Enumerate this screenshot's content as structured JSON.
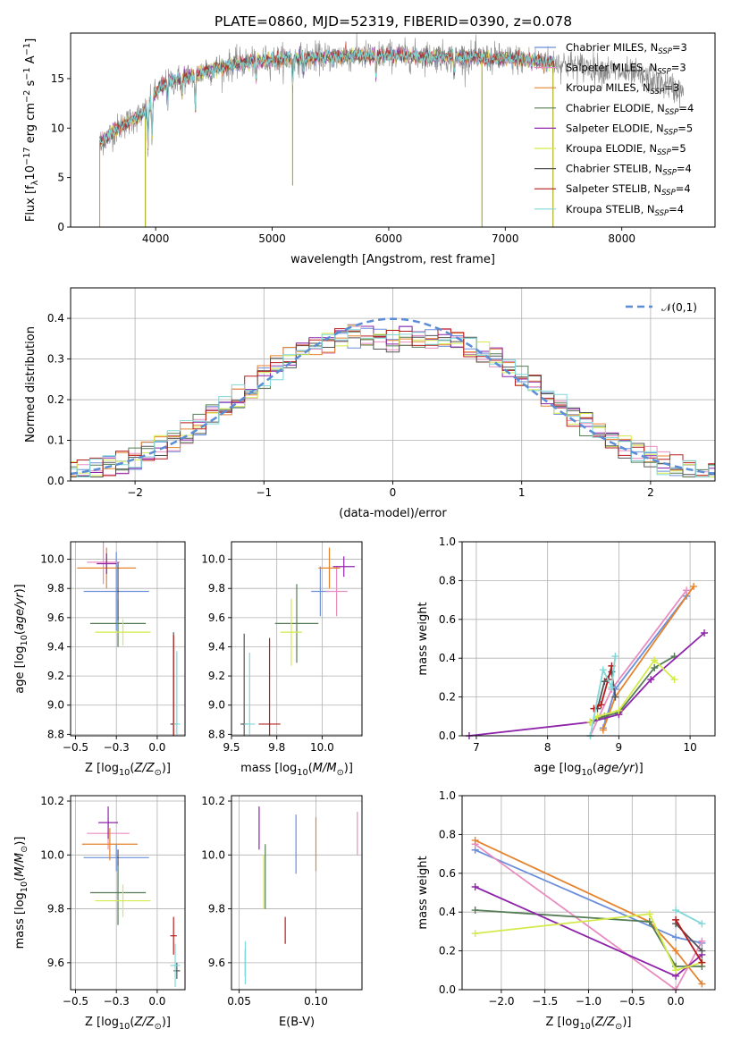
{
  "page_title": "PLATE=0860, MJD=52319, FIBERID=0390, z=0.078",
  "colors": {
    "Chabrier MILES": "#6a8edb",
    "Salpeter MILES": "#e88dc0",
    "Kroupa MILES": "#e5832d",
    "Chabrier ELODIE": "#557c55",
    "Salpeter ELODIE": "#8e24aa",
    "Kroupa ELODIE": "#d4ea4b",
    "Chabrier STELIB": "#555555",
    "Salpeter STELIB": "#b71c1c",
    "Kroupa STELIB": "#80d8d8",
    "gauss": "#5b8dd6"
  },
  "chart_data": [
    {
      "type": "line",
      "title": "PLATE=0860, MJD=52319, FIBERID=0390, z=0.078",
      "xlabel": "wavelength [Angstrom, rest frame]",
      "ylabel": "Flux [f_λ 10^-17 erg cm^-2 s^-1 A^-1]",
      "xlim": [
        3270,
        8800
      ],
      "ylim": [
        0,
        19.6
      ],
      "xticks": [
        4000,
        5000,
        6000,
        7000,
        8000
      ],
      "yticks": [
        0,
        5,
        10,
        15
      ],
      "legend_position": "right",
      "legend": [
        {
          "name": "Chabrier MILES",
          "ssp": "3"
        },
        {
          "name": "Salpeter MILES",
          "ssp": "3"
        },
        {
          "name": "Kroupa MILES",
          "ssp": "3"
        },
        {
          "name": "Chabrier ELODIE",
          "ssp": "4"
        },
        {
          "name": "Salpeter ELODIE",
          "ssp": "5"
        },
        {
          "name": "Kroupa ELODIE",
          "ssp": "5"
        },
        {
          "name": "Chabrier STELIB",
          "ssp": "4"
        },
        {
          "name": "Salpeter STELIB",
          "ssp": "4"
        },
        {
          "name": "Kroupa STELIB",
          "ssp": "4"
        }
      ],
      "continuum": [
        [
          3520,
          8.5
        ],
        [
          3700,
          10.2
        ],
        [
          3900,
          11.5
        ],
        [
          4000,
          13.5
        ],
        [
          4100,
          14.6
        ],
        [
          4300,
          15.3
        ],
        [
          4500,
          16.0
        ],
        [
          4800,
          16.7
        ],
        [
          5000,
          16.9
        ],
        [
          5500,
          17.2
        ],
        [
          6000,
          17.4
        ],
        [
          6500,
          17.2
        ],
        [
          7000,
          17.0
        ],
        [
          7300,
          16.8
        ],
        [
          7500,
          16.5
        ],
        [
          7800,
          16.0
        ],
        [
          8100,
          15.4
        ],
        [
          8400,
          14.3
        ],
        [
          8530,
          13.5
        ]
      ],
      "model_range": [
        3520,
        7420
      ],
      "obs_range": [
        3520,
        8530
      ]
    },
    {
      "type": "bar",
      "xlabel": "(data-model)/error",
      "ylabel": "Normed distribution",
      "xlim": [
        -2.5,
        2.5
      ],
      "ylim": [
        0,
        0.475
      ],
      "xticks": [
        -2,
        -1,
        0,
        1,
        2
      ],
      "yticks": [
        0.0,
        0.1,
        0.2,
        0.3,
        0.4
      ],
      "bin_width": 0.1,
      "gauss_label": "𝒩(0,1)",
      "legend_position": "top-right"
    },
    {
      "type": "scatter",
      "xlabel": "Z [log10(Z/Z⊙)]",
      "ylabel": "age  [log10(age/yr)]",
      "xlim": [
        -0.53,
        0.17
      ],
      "ylim": [
        8.79,
        10.12
      ],
      "xticks": [
        -0.5,
        -0.25,
        0.0
      ],
      "yticks": [
        8.8,
        9.0,
        9.2,
        9.4,
        9.6,
        9.8,
        10.0
      ],
      "points": [
        {
          "series": "Chabrier MILES",
          "x": -0.25,
          "y": 9.78,
          "ex": 0.2,
          "ey": 0.27
        },
        {
          "series": "Salpeter MILES",
          "x": -0.33,
          "y": 9.98,
          "ex": 0.1,
          "ey": 0.15
        },
        {
          "series": "Kroupa MILES",
          "x": -0.31,
          "y": 9.94,
          "ex": 0.18,
          "ey": 0.14
        },
        {
          "series": "Chabrier ELODIE",
          "x": -0.24,
          "y": 9.56,
          "ex": 0.17,
          "ey": 0.16
        },
        {
          "series": "Salpeter ELODIE",
          "x": -0.31,
          "y": 9.97,
          "ex": 0.06,
          "ey": 0.07
        },
        {
          "series": "Kroupa ELODIE",
          "x": -0.21,
          "y": 9.5,
          "ex": 0.17,
          "ey": 0.09
        },
        {
          "series": "Chabrier STELIB",
          "x": 0.1,
          "y": 8.87,
          "ex": 0.02,
          "ey": 0.63
        },
        {
          "series": "Salpeter STELIB",
          "x": 0.1,
          "y": 8.87,
          "ex": 0.01,
          "ey": 0.61
        },
        {
          "series": "Kroupa STELIB",
          "x": 0.12,
          "y": 8.87,
          "ex": 0.02,
          "ey": 0.5
        },
        {
          "series": "Chabrier STELIB",
          "x": -0.24,
          "y": 9.78,
          "ex": 0.005,
          "ey": 0.2
        }
      ]
    },
    {
      "type": "scatter",
      "xlabel": "mass [log10(M/M⊙)]",
      "ylabel": "",
      "xlim": [
        9.5,
        10.22
      ],
      "ylim": [
        8.79,
        10.12
      ],
      "xticks": [
        9.5,
        9.75,
        10.0
      ],
      "yticks": [
        8.8,
        9.0,
        9.2,
        9.4,
        9.6,
        9.8,
        10.0
      ],
      "points": [
        {
          "series": "Chabrier MILES",
          "x": 9.99,
          "y": 9.78,
          "ex": 0.05,
          "ey": 0.17
        },
        {
          "series": "Salpeter MILES",
          "x": 10.08,
          "y": 9.78,
          "ex": 0.06,
          "ey": 0.17
        },
        {
          "series": "Kroupa MILES",
          "x": 10.04,
          "y": 9.94,
          "ex": 0.06,
          "ey": 0.14
        },
        {
          "series": "Chabrier ELODIE",
          "x": 9.86,
          "y": 9.56,
          "ex": 0.12,
          "ey": 0.27
        },
        {
          "series": "Salpeter ELODIE",
          "x": 10.12,
          "y": 9.95,
          "ex": 0.06,
          "ey": 0.07
        },
        {
          "series": "Kroupa ELODIE",
          "x": 9.83,
          "y": 9.5,
          "ex": 0.06,
          "ey": 0.23
        },
        {
          "series": "Chabrier STELIB",
          "x": 9.57,
          "y": 8.87,
          "ex": 0.02,
          "ey": 0.62
        },
        {
          "series": "Salpeter STELIB",
          "x": 9.71,
          "y": 8.87,
          "ex": 0.06,
          "ey": 0.59
        },
        {
          "series": "Kroupa STELIB",
          "x": 9.6,
          "y": 8.87,
          "ex": 0.03,
          "ey": 0.49
        }
      ]
    },
    {
      "type": "line",
      "xlabel": "age  [log10(age/yr)]",
      "ylabel": "mass weight",
      "xlim": [
        6.8,
        10.35
      ],
      "ylim": [
        0,
        1.0
      ],
      "xticks": [
        7,
        8,
        9,
        10
      ],
      "yticks": [
        0.0,
        0.2,
        0.4,
        0.6,
        0.8,
        1.0
      ],
      "series": [
        {
          "name": "Chabrier MILES",
          "x": [
            8.78,
            8.95,
            9.95
          ],
          "y": [
            0.04,
            0.24,
            0.72
          ]
        },
        {
          "name": "Salpeter MILES",
          "x": [
            8.6,
            8.9,
            9.95
          ],
          "y": [
            0.0,
            0.24,
            0.75
          ]
        },
        {
          "name": "Kroupa MILES",
          "x": [
            8.78,
            8.95,
            10.05
          ],
          "y": [
            0.03,
            0.2,
            0.77
          ]
        },
        {
          "name": "Chabrier ELODIE",
          "x": [
            8.65,
            8.8,
            9.0,
            9.5,
            9.78
          ],
          "y": [
            0.08,
            0.1,
            0.12,
            0.35,
            0.41
          ]
        },
        {
          "name": "Salpeter ELODIE",
          "x": [
            6.9,
            8.6,
            9.0,
            9.45,
            10.2
          ],
          "y": [
            0.0,
            0.07,
            0.11,
            0.29,
            0.53
          ]
        },
        {
          "name": "Kroupa ELODIE",
          "x": [
            8.6,
            8.7,
            9.0,
            9.5,
            9.78
          ],
          "y": [
            0.07,
            0.1,
            0.13,
            0.39,
            0.29
          ]
        },
        {
          "name": "Chabrier STELIB",
          "x": [
            8.7,
            8.8,
            8.9,
            8.95
          ],
          "y": [
            0.14,
            0.28,
            0.33,
            0.2
          ]
        },
        {
          "name": "Salpeter STELIB",
          "x": [
            8.65,
            8.75,
            8.85,
            8.9
          ],
          "y": [
            0.14,
            0.16,
            0.29,
            0.36
          ]
        },
        {
          "name": "Kroupa STELIB",
          "x": [
            8.6,
            8.78,
            8.9,
            8.95
          ],
          "y": [
            0.0,
            0.34,
            0.25,
            0.41
          ]
        }
      ]
    },
    {
      "type": "scatter",
      "xlabel": "Z [log10(Z/Z⊙)]",
      "ylabel": "mass [log10(M/M⊙)]",
      "xlim": [
        -0.53,
        0.17
      ],
      "ylim": [
        9.5,
        10.22
      ],
      "xticks": [
        -0.5,
        -0.25,
        0.0
      ],
      "yticks": [
        9.6,
        9.8,
        10.0,
        10.2
      ],
      "points": [
        {
          "series": "Chabrier MILES",
          "x": -0.25,
          "y": 9.99,
          "ex": 0.2,
          "ey": 0.05
        },
        {
          "series": "Salpeter MILES",
          "x": -0.3,
          "y": 10.08,
          "ex": 0.13,
          "ey": 0.06
        },
        {
          "series": "Kroupa MILES",
          "x": -0.29,
          "y": 10.04,
          "ex": 0.17,
          "ey": 0.06
        },
        {
          "series": "Chabrier ELODIE",
          "x": -0.24,
          "y": 9.86,
          "ex": 0.17,
          "ey": 0.12
        },
        {
          "series": "Salpeter ELODIE",
          "x": -0.3,
          "y": 10.12,
          "ex": 0.06,
          "ey": 0.06
        },
        {
          "series": "Kroupa ELODIE",
          "x": -0.21,
          "y": 9.83,
          "ex": 0.17,
          "ey": 0.06
        },
        {
          "series": "Chabrier STELIB",
          "x": 0.12,
          "y": 9.57,
          "ex": 0.02,
          "ey": 0.03
        },
        {
          "series": "Salpeter STELIB",
          "x": 0.1,
          "y": 9.7,
          "ex": 0.02,
          "ey": 0.07
        },
        {
          "series": "Kroupa STELIB",
          "x": 0.11,
          "y": 9.59,
          "ex": 0.03,
          "ey": 0.08
        },
        {
          "series": "Chabrier STELIB",
          "x": -0.24,
          "y": 9.99,
          "ex": 0.005,
          "ey": 0.03
        }
      ]
    },
    {
      "type": "scatter",
      "xlabel": "E(B-V)",
      "ylabel": "",
      "xlim": [
        0.045,
        0.13
      ],
      "ylim": [
        9.5,
        10.22
      ],
      "xticks": [
        0.05,
        0.1
      ],
      "yticks": [
        9.6,
        9.8,
        10.0,
        10.2
      ],
      "points": [
        {
          "series": "Chabrier MILES",
          "x": 0.087,
          "y": 10.04,
          "ex": 0,
          "ey": 0.11
        },
        {
          "series": "Salpeter MILES",
          "x": 0.127,
          "y": 10.08,
          "ex": 0,
          "ey": 0.08
        },
        {
          "series": "Kroupa MILES",
          "x": 0.1,
          "y": 10.04,
          "ex": 0,
          "ey": 0.1
        },
        {
          "series": "Chabrier ELODIE",
          "x": 0.067,
          "y": 9.92,
          "ex": 0,
          "ey": 0.12
        },
        {
          "series": "Salpeter ELODIE",
          "x": 0.063,
          "y": 10.1,
          "ex": 0,
          "ey": 0.08
        },
        {
          "series": "Kroupa ELODIE",
          "x": 0.066,
          "y": 9.9,
          "ex": 0,
          "ey": 0.1
        },
        {
          "series": "Chabrier STELIB",
          "x": 0.054,
          "y": 9.6,
          "ex": 0,
          "ey": 0.05
        },
        {
          "series": "Salpeter STELIB",
          "x": 0.08,
          "y": 9.72,
          "ex": 0,
          "ey": 0.05
        },
        {
          "series": "Kroupa STELIB",
          "x": 0.054,
          "y": 9.6,
          "ex": 0,
          "ey": 0.08
        }
      ]
    },
    {
      "type": "line",
      "xlabel": "Z [log10(Z/Z⊙)]",
      "ylabel": "mass weight",
      "xlim": [
        -2.45,
        0.45
      ],
      "ylim": [
        0,
        1.0
      ],
      "xticks": [
        -2.0,
        -1.5,
        -1.0,
        -0.5,
        0.0
      ],
      "yticks": [
        0.0,
        0.2,
        0.4,
        0.6,
        0.8,
        1.0
      ],
      "series": [
        {
          "name": "Chabrier MILES",
          "x": [
            -2.3,
            0.0,
            0.3
          ],
          "y": [
            0.72,
            0.27,
            0.24
          ]
        },
        {
          "name": "Salpeter MILES",
          "x": [
            -2.3,
            0.0,
            0.3
          ],
          "y": [
            0.75,
            0.0,
            0.25
          ]
        },
        {
          "name": "Kroupa MILES",
          "x": [
            -2.3,
            -0.3,
            0.0,
            0.3
          ],
          "y": [
            0.77,
            0.35,
            0.2,
            0.03
          ]
        },
        {
          "name": "Chabrier ELODIE",
          "x": [
            -2.3,
            -0.3,
            0.0,
            0.3
          ],
          "y": [
            0.41,
            0.35,
            0.12,
            0.12
          ]
        },
        {
          "name": "Salpeter ELODIE",
          "x": [
            -2.3,
            0.0,
            0.3
          ],
          "y": [
            0.53,
            0.07,
            0.18
          ]
        },
        {
          "name": "Kroupa ELODIE",
          "x": [
            -2.3,
            -0.3,
            0.0,
            0.3
          ],
          "y": [
            0.29,
            0.39,
            0.1,
            0.14
          ]
        },
        {
          "name": "Chabrier STELIB",
          "x": [
            0.0,
            0.3
          ],
          "y": [
            0.34,
            0.2
          ]
        },
        {
          "name": "Salpeter STELIB",
          "x": [
            0.0,
            0.3
          ],
          "y": [
            0.36,
            0.14
          ]
        },
        {
          "name": "Kroupa STELIB",
          "x": [
            0.0,
            0.3
          ],
          "y": [
            0.41,
            0.34
          ]
        }
      ]
    }
  ]
}
